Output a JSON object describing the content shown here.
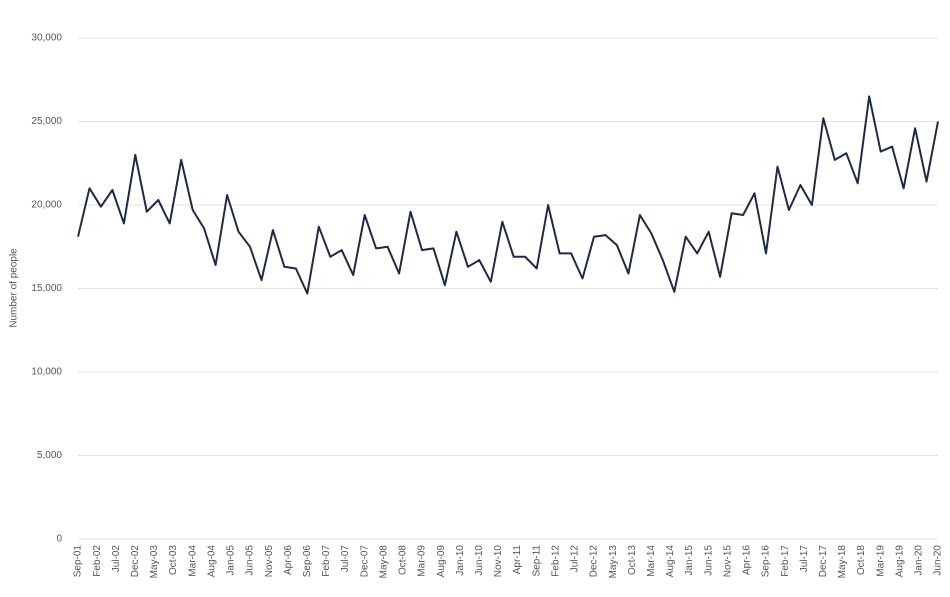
{
  "chart_data": {
    "type": "line",
    "y_label": "Number of people",
    "xticks": [
      "Sep-01",
      "Feb-02",
      "Jul-02",
      "Dec-02",
      "May-03",
      "Oct-03",
      "Mar-04",
      "Aug-04",
      "Jan-05",
      "Jun-05",
      "Nov-05",
      "Apr-06",
      "Sep-06",
      "Feb-07",
      "Jul-07",
      "Dec-07",
      "May-08",
      "Oct-08",
      "Mar-09",
      "Aug-09",
      "Jan-10",
      "Jun-10",
      "Nov-10",
      "Apr-11",
      "Sep-11",
      "Feb-12",
      "Jul-12",
      "Dec-12",
      "May-13",
      "Oct-13",
      "Mar-14",
      "Aug-14",
      "Jan-15",
      "Jun-15",
      "Nov-15",
      "Apr-16",
      "Sep-16",
      "Feb-17",
      "Jul-17",
      "Dec-17",
      "May-18",
      "Oct-18",
      "Mar-19",
      "Aug-19",
      "Jan-20",
      "Jun-20"
    ],
    "values": [
      18100,
      21000,
      19900,
      20900,
      18900,
      23000,
      19600,
      20300,
      18900,
      22700,
      19700,
      18600,
      16400,
      20600,
      18400,
      17500,
      15500,
      18500,
      16300,
      16200,
      14700,
      18700,
      16900,
      17300,
      15800,
      19400,
      17400,
      17500,
      15900,
      19600,
      17300,
      17400,
      15200,
      18400,
      16300,
      16700,
      15400,
      19000,
      16900,
      16900,
      16200,
      20000,
      17100,
      17100,
      15600,
      18100,
      18200,
      17600,
      15900,
      19400,
      18300,
      16700,
      14800,
      18100,
      17100,
      18400,
      15700,
      19500,
      19400,
      20700,
      17100,
      22300,
      19700,
      21200,
      20000,
      25200,
      22700,
      23100,
      21300,
      26500,
      23200,
      23500,
      21000,
      24600,
      21400,
      25000
    ],
    "color": "#1f2a44",
    "ylim": [
      0,
      30000
    ],
    "yticks": [
      0,
      {
        "value": 5000,
        "label": "5,000"
      },
      {
        "value": 10000,
        "label": "10,000"
      },
      {
        "value": 15000,
        "label": "15,000"
      },
      {
        "value": 20000,
        "label": "20,000"
      },
      {
        "value": 25000,
        "label": "25,000"
      },
      {
        "value": 30000,
        "label": "30,000"
      }
    ],
    "grid": true
  }
}
